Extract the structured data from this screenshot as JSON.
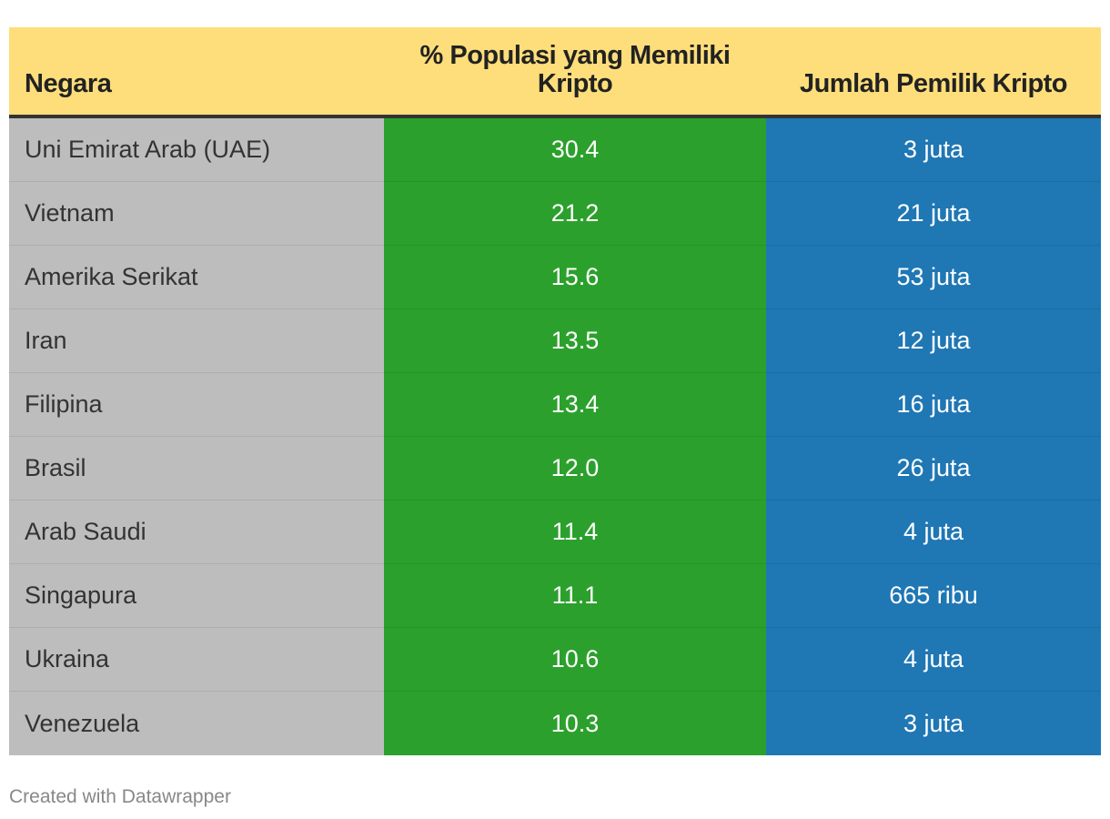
{
  "colors": {
    "header_bg": "#FEDE7A",
    "country_bg": "#BDBDBD",
    "percent_bg": "#2CA02C",
    "owners_bg": "#1F77B4",
    "header_rule": "#333333"
  },
  "chart_data": {
    "type": "table",
    "columns": [
      "Negara",
      "% Populasi yang Memiliki Kripto",
      "Jumlah Pemilik Kripto"
    ],
    "rows": [
      [
        "Uni Emirat Arab (UAE)",
        "30.4",
        "3 juta"
      ],
      [
        "Vietnam",
        "21.2",
        "21 juta"
      ],
      [
        "Amerika Serikat",
        "15.6",
        "53 juta"
      ],
      [
        "Iran",
        "13.5",
        "12 juta"
      ],
      [
        "Filipina",
        "13.4",
        "16 juta"
      ],
      [
        "Brasil",
        "12.0",
        "26 juta"
      ],
      [
        "Arab Saudi",
        "11.4",
        "4 juta"
      ],
      [
        "Singapura",
        "11.1",
        "665 ribu"
      ],
      [
        "Ukraina",
        "10.6",
        "4 juta"
      ],
      [
        "Venezuela",
        "10.3",
        "3 juta"
      ]
    ]
  },
  "footer": {
    "credit": "Created with Datawrapper"
  }
}
